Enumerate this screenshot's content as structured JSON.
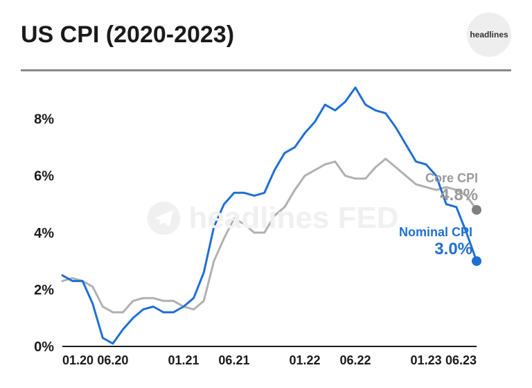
{
  "title": "US CPI (2020-2023)",
  "logo_text": "headlines",
  "watermark_text": "headlines FED",
  "chart": {
    "type": "line",
    "background_color": "#ffffff",
    "ylim": [
      0,
      9.5
    ],
    "y_ticks": [
      0,
      2,
      4,
      6,
      8
    ],
    "y_tick_labels": [
      "0%",
      "2%",
      "4%",
      "6%",
      "8%"
    ],
    "x_tick_labels": [
      "01.20",
      "06.20",
      "01.21",
      "06.21",
      "01.22",
      "06.22",
      "01.23",
      "06.23"
    ],
    "x_tick_positions": [
      0,
      5,
      12,
      17,
      24,
      29,
      36,
      41
    ],
    "x_count": 42,
    "axis_color": "#1a1a1a",
    "line_width": 3,
    "y_label_fontsize": 20,
    "x_label_fontsize": 18,
    "series": [
      {
        "name": "Core CPI",
        "color": "#b0b0b0",
        "label_color": "#9a9a9a",
        "end_value_label": "4.8%",
        "end_marker_color": "#808080",
        "values": [
          2.3,
          2.4,
          2.3,
          2.1,
          1.4,
          1.2,
          1.2,
          1.6,
          1.7,
          1.7,
          1.6,
          1.6,
          1.4,
          1.3,
          1.6,
          3.0,
          3.8,
          4.5,
          4.3,
          4.0,
          4.0,
          4.6,
          4.9,
          5.5,
          6.0,
          6.2,
          6.4,
          6.5,
          6.0,
          5.9,
          5.9,
          6.3,
          6.6,
          6.3,
          6.0,
          5.7,
          5.6,
          5.5,
          5.6,
          5.5,
          5.3,
          4.8
        ]
      },
      {
        "name": "Nominal CPI",
        "color": "#1f6fd1",
        "label_color": "#1f6fd1",
        "end_value_label": "3.0%",
        "end_marker_color": "#1f6fd1",
        "values": [
          2.5,
          2.3,
          2.3,
          1.5,
          0.3,
          0.1,
          0.6,
          1.0,
          1.3,
          1.4,
          1.2,
          1.2,
          1.4,
          1.7,
          2.6,
          4.2,
          5.0,
          5.4,
          5.4,
          5.3,
          5.4,
          6.2,
          6.8,
          7.0,
          7.5,
          7.9,
          8.5,
          8.3,
          8.6,
          9.1,
          8.5,
          8.3,
          8.2,
          7.7,
          7.1,
          6.5,
          6.4,
          6.0,
          5.0,
          4.9,
          4.0,
          3.0
        ]
      }
    ]
  }
}
